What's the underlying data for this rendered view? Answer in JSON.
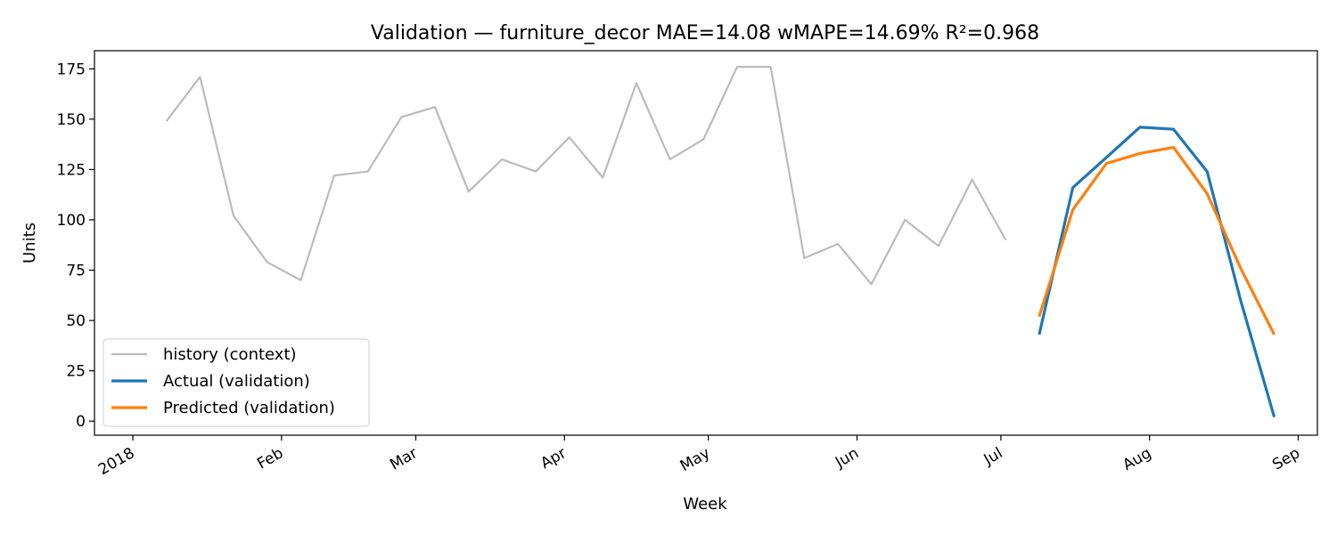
{
  "chart_data": {
    "type": "line",
    "title": "Validation — furniture_decor   MAE=14.08  wMAPE=14.69%  R²=0.968",
    "xlabel": "Week",
    "ylabel": "Units",
    "xlim": [
      "2017-12-24",
      "2018-09-05"
    ],
    "ylim": [
      -7,
      184
    ],
    "grid": false,
    "legend_position": "lower-left",
    "x_ticks": [
      {
        "date": "2018-01-01",
        "label": "2018"
      },
      {
        "date": "2018-02-01",
        "label": "Feb"
      },
      {
        "date": "2018-03-01",
        "label": "Mar"
      },
      {
        "date": "2018-04-01",
        "label": "Apr"
      },
      {
        "date": "2018-05-01",
        "label": "May"
      },
      {
        "date": "2018-06-01",
        "label": "Jun"
      },
      {
        "date": "2018-07-01",
        "label": "Jul"
      },
      {
        "date": "2018-08-01",
        "label": "Aug"
      },
      {
        "date": "2018-09-01",
        "label": "Sep"
      }
    ],
    "y_ticks": [
      0,
      25,
      50,
      75,
      100,
      125,
      150,
      175
    ],
    "series": [
      {
        "name": "history (context)",
        "color": "#bbbbbb",
        "x": [
          "2018-01-08",
          "2018-01-15",
          "2018-01-22",
          "2018-01-29",
          "2018-02-05",
          "2018-02-12",
          "2018-02-19",
          "2018-02-26",
          "2018-03-05",
          "2018-03-12",
          "2018-03-19",
          "2018-03-26",
          "2018-04-02",
          "2018-04-09",
          "2018-04-16",
          "2018-04-23",
          "2018-04-30",
          "2018-05-07",
          "2018-05-14",
          "2018-05-21",
          "2018-05-28",
          "2018-06-04",
          "2018-06-11",
          "2018-06-18",
          "2018-06-25",
          "2018-07-02"
        ],
        "y": [
          149,
          171,
          102,
          79,
          70,
          122,
          124,
          151,
          156,
          114,
          130,
          124,
          141,
          121,
          168,
          130,
          140,
          176,
          176,
          81,
          88,
          68,
          100,
          87,
          120,
          90
        ]
      },
      {
        "name": "Actual (validation)",
        "color": "#1f77b4",
        "x": [
          "2018-07-09",
          "2018-07-16",
          "2018-07-23",
          "2018-07-30",
          "2018-08-06",
          "2018-08-13",
          "2018-08-20",
          "2018-08-27"
        ],
        "y": [
          43,
          116,
          131,
          146,
          145,
          124,
          60,
          2
        ]
      },
      {
        "name": "Predicted (validation)",
        "color": "#ff7f0e",
        "x": [
          "2018-07-09",
          "2018-07-16",
          "2018-07-23",
          "2018-07-30",
          "2018-08-06",
          "2018-08-13",
          "2018-08-20",
          "2018-08-27"
        ],
        "y": [
          52,
          105,
          128,
          133,
          136,
          113,
          76,
          43
        ]
      }
    ]
  }
}
